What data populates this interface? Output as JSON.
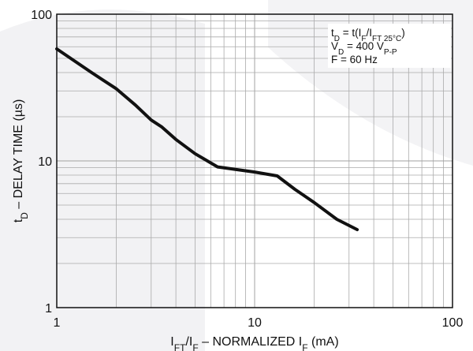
{
  "chart_data": {
    "type": "line",
    "x_scale": "log",
    "y_scale": "log",
    "xlim": [
      1,
      100
    ],
    "ylim": [
      1,
      100
    ],
    "grid": true,
    "xlabel": {
      "parts": [
        "I",
        "FT",
        "/I",
        "F",
        " – NORMALIZED I",
        "F",
        " (mA)"
      ]
    },
    "ylabel": {
      "parts": [
        "t",
        "D",
        " – DELAY TIME (µs)"
      ]
    },
    "x_ticks": [
      {
        "value": 1,
        "label": "1"
      },
      {
        "value": 10,
        "label": "10"
      },
      {
        "value": 100,
        "label": "100"
      }
    ],
    "y_ticks": [
      {
        "value": 1,
        "label": "1"
      },
      {
        "value": 10,
        "label": "10"
      },
      {
        "value": 100,
        "label": "100"
      }
    ],
    "annotation": {
      "line1": [
        "t",
        "D",
        " = t(I",
        "F",
        "/I",
        "FT 25°C",
        ")"
      ],
      "line2": [
        "V",
        "D",
        " = 400 V",
        "P-P"
      ],
      "line3": "F = 60 Hz"
    },
    "series": [
      {
        "color": "#111111",
        "points": [
          [
            1,
            58
          ],
          [
            1.5,
            40
          ],
          [
            2,
            31
          ],
          [
            2.5,
            24
          ],
          [
            3,
            19
          ],
          [
            3.4,
            17
          ],
          [
            4,
            14
          ],
          [
            5,
            11.2
          ],
          [
            6.5,
            9.1
          ],
          [
            10,
            8.4
          ],
          [
            13,
            7.9
          ],
          [
            16,
            6.4
          ],
          [
            20,
            5.2
          ],
          [
            26,
            4.0
          ],
          [
            33,
            3.4
          ]
        ]
      }
    ]
  }
}
